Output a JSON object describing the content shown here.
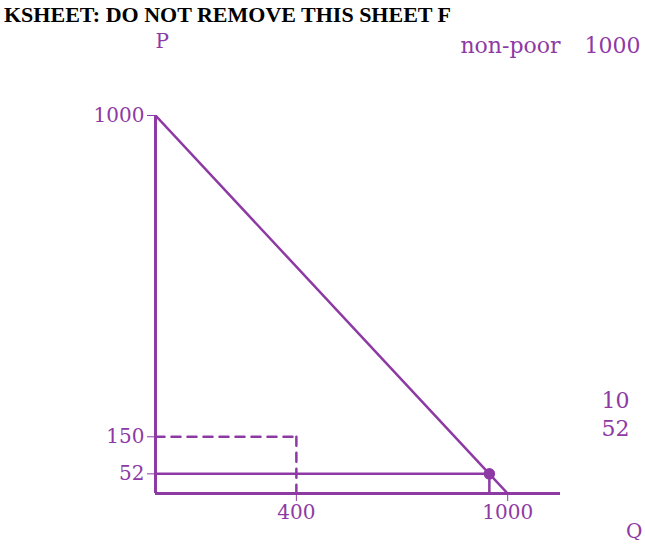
{
  "chart_data": {
    "type": "line",
    "title": "KSHEET: DO NOT REMOVE THIS SHEET F",
    "x_label": "Q",
    "y_label": "P",
    "color": "#8e3aa5",
    "xlim": [
      0,
      1150
    ],
    "ylim": [
      0,
      1000
    ],
    "xticks": [
      400,
      1000
    ],
    "yticks": [
      52,
      150,
      1000
    ],
    "series": [
      {
        "type": "line",
        "color": "#8e3aa5",
        "line_style": "solid",
        "x": [
          0,
          948,
          1000
        ],
        "values": [
          1000,
          52,
          0
        ]
      },
      {
        "type": "line",
        "color": "#8e3aa5",
        "line_style": "solid",
        "x": [
          0,
          948
        ],
        "values": [
          52,
          52
        ]
      },
      {
        "type": "line",
        "color": "#8e3aa5",
        "line_style": "solid",
        "x": [
          948,
          948
        ],
        "values": [
          52,
          0
        ]
      },
      {
        "type": "line",
        "color": "#8e3aa5",
        "line_style": "dashed",
        "x": [
          0,
          400
        ],
        "values": [
          150,
          150
        ]
      },
      {
        "type": "line",
        "color": "#8e3aa5",
        "line_style": "dashed",
        "x": [
          400,
          400
        ],
        "values": [
          150,
          0
        ]
      },
      {
        "type": "scatter",
        "color": "#8e3aa5",
        "marker": "dot",
        "x": [
          948
        ],
        "values": [
          52
        ]
      }
    ],
    "annotations": [
      "non-poor",
      "1000",
      "10",
      "52"
    ]
  }
}
